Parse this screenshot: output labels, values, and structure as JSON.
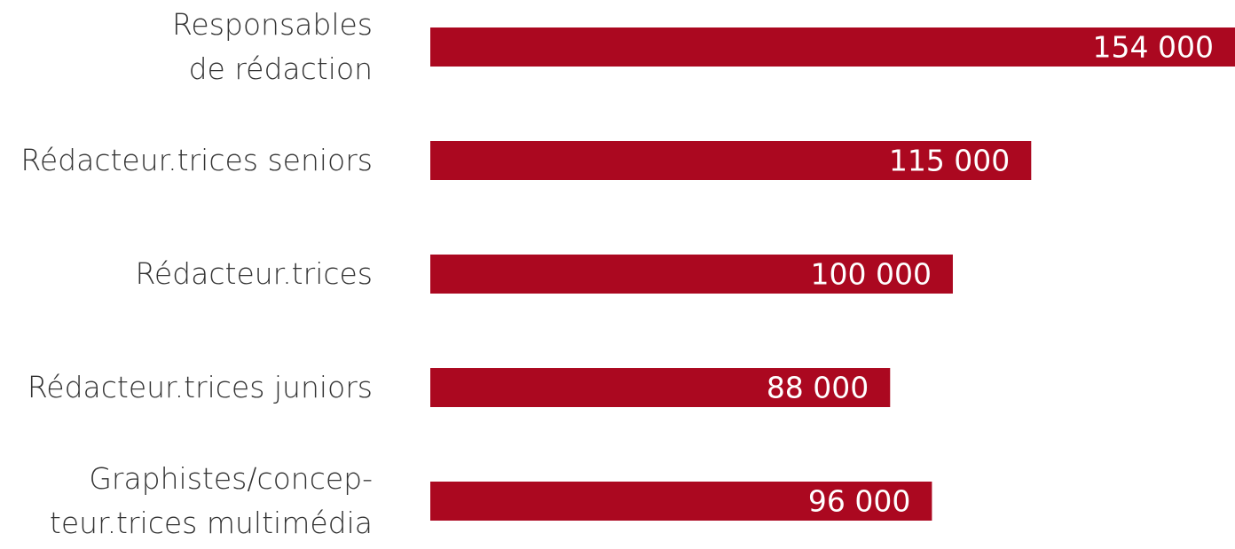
{
  "chart_data": {
    "type": "hbar",
    "categories": [
      "Responsables\nde rédaction",
      "Rédacteur.trices seniors",
      "Rédacteur.trices",
      "Rédacteur.trices juniors",
      "Graphistes/concep-\nteur.trices multimédia"
    ],
    "values": [
      154000,
      115000,
      100000,
      88000,
      96000
    ],
    "value_labels": [
      "154 000",
      "115 000",
      "100 000",
      "88 000",
      "96 000"
    ],
    "color": "#ab0820"
  }
}
